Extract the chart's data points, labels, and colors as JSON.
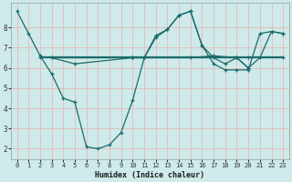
{
  "xlabel": "Humidex (Indice chaleur)",
  "ylabel": "",
  "bg_color": "#ceeaea",
  "grid_color": "#b8d8d8",
  "line_color": "#1a6b6b",
  "xlim": [
    -0.5,
    23.5
  ],
  "ylim": [
    1.5,
    9.2
  ],
  "xticks": [
    0,
    1,
    2,
    3,
    4,
    5,
    6,
    7,
    8,
    9,
    10,
    11,
    12,
    13,
    14,
    15,
    16,
    17,
    18,
    19,
    20,
    21,
    22,
    23
  ],
  "yticks": [
    2,
    3,
    4,
    5,
    6,
    7,
    8
  ],
  "lines": [
    {
      "x": [
        0,
        1,
        2,
        3,
        4,
        5,
        6,
        7,
        8,
        9,
        10,
        11,
        12,
        13,
        14,
        15,
        16,
        17,
        18,
        19,
        20,
        21,
        22,
        23
      ],
      "y": [
        8.8,
        7.7,
        6.6,
        5.7,
        4.5,
        4.3,
        2.1,
        2.0,
        2.2,
        2.8,
        4.4,
        6.5,
        7.5,
        7.9,
        8.6,
        8.8,
        7.1,
        6.2,
        5.9,
        5.9,
        5.9,
        7.7,
        7.8,
        7.7
      ]
    },
    {
      "x": [
        2,
        23
      ],
      "y": [
        6.55,
        6.55
      ]
    },
    {
      "x": [
        3,
        10,
        19,
        20,
        23
      ],
      "y": [
        6.5,
        6.5,
        6.5,
        6.5,
        6.5
      ]
    },
    {
      "x": [
        3,
        5,
        10,
        11,
        12,
        13,
        14,
        15,
        16,
        17,
        18,
        19,
        20
      ],
      "y": [
        6.5,
        6.2,
        6.5,
        6.5,
        7.6,
        7.9,
        8.6,
        8.8,
        7.1,
        6.5,
        6.2,
        6.5,
        6.0
      ]
    },
    {
      "x": [
        2,
        10,
        15,
        17,
        19,
        20,
        21,
        22,
        23
      ],
      "y": [
        6.5,
        6.5,
        6.5,
        6.6,
        6.5,
        6.0,
        6.5,
        7.8,
        7.7
      ]
    }
  ]
}
